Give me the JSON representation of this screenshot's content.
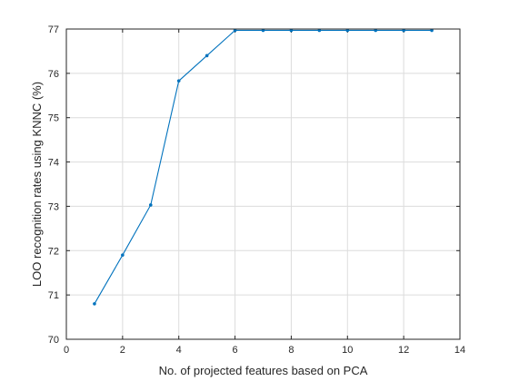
{
  "chart_data": {
    "type": "line",
    "title": "",
    "xlabel": "No. of projected features based on PCA",
    "ylabel": "LOO recognition rates using KNNC (%)",
    "xlim": [
      0,
      14
    ],
    "ylim": [
      70,
      77
    ],
    "xticks": [
      0,
      2,
      4,
      6,
      8,
      10,
      12,
      14
    ],
    "yticks": [
      70,
      71,
      72,
      73,
      74,
      75,
      76,
      77
    ],
    "grid": true,
    "legend": "none",
    "series": [
      {
        "color": "#0072BD",
        "marker": "dot",
        "x": [
          1,
          2,
          3,
          4,
          5,
          6,
          7,
          8,
          9,
          10,
          11,
          12,
          13
        ],
        "y": [
          70.8,
          71.9,
          73.03,
          75.83,
          76.4,
          76.97,
          76.97,
          76.97,
          76.97,
          76.97,
          76.97,
          76.97,
          76.97
        ]
      }
    ]
  }
}
